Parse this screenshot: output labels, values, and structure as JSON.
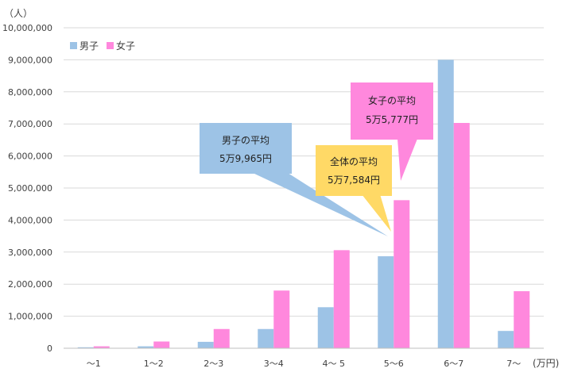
{
  "chart_data": {
    "type": "bar",
    "unit_y": "（人）",
    "unit_x": "(万円)",
    "categories": [
      "～1",
      "1～2",
      "2～3",
      "3～4",
      "4～ 5",
      "5～6",
      "6～7",
      "7～"
    ],
    "ylim": [
      0,
      10000000
    ],
    "yticks": [
      0,
      1000000,
      2000000,
      3000000,
      4000000,
      5000000,
      6000000,
      7000000,
      8000000,
      9000000,
      10000000
    ],
    "ytick_labels": [
      "0",
      "1,000,000",
      "2,000,000",
      "3,000,000",
      "4,000,000",
      "5,000,000",
      "6,000,000",
      "7,000,000",
      "8,000,000",
      "9,000,000",
      "10,000,000"
    ],
    "grid": true,
    "legend_position": "top-left",
    "series": [
      {
        "name": "男子",
        "color": "#9DC3E6",
        "values": [
          30000,
          60000,
          200000,
          600000,
          1280000,
          2870000,
          9000000,
          540000
        ]
      },
      {
        "name": "女子",
        "color": "#FF88DD",
        "values": [
          60000,
          210000,
          600000,
          1800000,
          3060000,
          4620000,
          7030000,
          1780000
        ]
      }
    ],
    "annotations": [
      {
        "id": "male-average",
        "lines": [
          "男子の平均",
          "5万9,965円"
        ],
        "color": "#9DC3E6"
      },
      {
        "id": "overall-average",
        "lines": [
          "全体の平均",
          "5万7,584円"
        ],
        "color": "#FFD966"
      },
      {
        "id": "female-average",
        "lines": [
          "女子の平均",
          "5万5,777円"
        ],
        "color": "#FF88DD"
      }
    ]
  }
}
